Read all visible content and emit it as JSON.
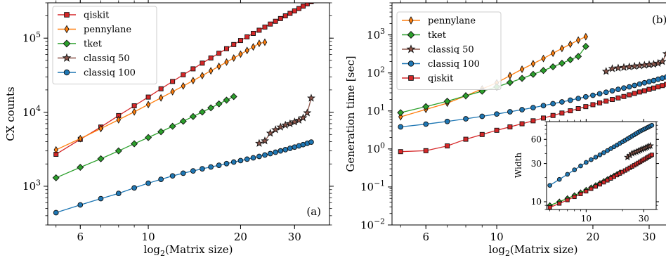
{
  "colors": {
    "qiskit": "#d62728",
    "pennylane": "#ff7f0e",
    "tket": "#2ca02c",
    "classiq": "#1f77b4",
    "classiq50": "#8c564b"
  },
  "chart_data": [
    {
      "type": "line",
      "panel": "(a)",
      "xscale": "log",
      "yscale": "log",
      "xlabel": "log$_2$(Matrix size)",
      "xlabel_text": "log",
      "xlabel_sub": "2",
      "xlabel_rest": "(Matrix size)",
      "ylabel": "CX counts",
      "xlim": [
        4.7,
        39
      ],
      "ylim": [
        300,
        300000
      ],
      "xticks": [
        {
          "v": 6,
          "label": "6"
        },
        {
          "v": 10,
          "label": "10"
        },
        {
          "v": 20,
          "label": "20"
        },
        {
          "v": 30,
          "label": "30"
        }
      ],
      "yticks": [
        {
          "v": 1000,
          "base": "10",
          "exp": "3"
        },
        {
          "v": 10000,
          "base": "10",
          "exp": "4"
        },
        {
          "v": 100000,
          "base": "10",
          "exp": "5"
        }
      ],
      "legend_position": "top-left",
      "series": [
        {
          "name": "qiskit",
          "color": "#d62728",
          "marker": "square",
          "x": [
            5,
            6,
            7,
            8,
            9,
            10,
            11,
            12,
            13,
            14,
            15,
            16,
            17,
            18,
            19,
            20,
            21,
            22,
            23,
            24,
            25,
            26,
            27,
            28,
            29,
            30,
            31,
            32,
            33,
            34,
            35
          ],
          "y": [
            2700,
            4300,
            6300,
            9000,
            12200,
            16000,
            20700,
            26000,
            32000,
            38500,
            46000,
            54000,
            62500,
            72000,
            82000,
            93000,
            104000,
            116000,
            128000,
            141000,
            155000,
            169000,
            184000,
            200000,
            216000,
            233000,
            251000,
            270000,
            290000,
            310000,
            320000
          ]
        },
        {
          "name": "pennylane",
          "color": "#ff7f0e",
          "marker": "thin_diamond",
          "x": [
            5,
            6,
            7,
            8,
            9,
            10,
            11,
            12,
            13,
            14,
            15,
            16,
            17,
            18,
            19,
            20,
            21,
            22,
            23,
            24
          ],
          "y": [
            3100,
            4400,
            6000,
            7900,
            10100,
            12700,
            15600,
            18900,
            22600,
            26700,
            31200,
            36200,
            41600,
            47500,
            53900,
            60800,
            68200,
            76100,
            85000,
            88000
          ]
        },
        {
          "name": "tket",
          "color": "#2ca02c",
          "marker": "diamond",
          "x": [
            5,
            6,
            7,
            8,
            9,
            10,
            11,
            12,
            13,
            14,
            15,
            16,
            17,
            18,
            19
          ],
          "y": [
            1300,
            1800,
            2350,
            3000,
            3750,
            4550,
            5450,
            6450,
            7550,
            8750,
            10050,
            11450,
            12950,
            14550,
            16250
          ]
        },
        {
          "name": "classiq 50",
          "color": "#8c564b",
          "marker": "star",
          "x": [
            23,
            24,
            25,
            26,
            27,
            28,
            29,
            30,
            31,
            32,
            33,
            34
          ],
          "y": [
            3800,
            4100,
            5200,
            5800,
            6300,
            6700,
            7000,
            7400,
            7800,
            8400,
            9800,
            15500
          ]
        },
        {
          "name": "classiq 100",
          "color": "#1f77b4",
          "marker": "circle",
          "x": [
            5,
            6,
            7,
            8,
            9,
            10,
            11,
            12,
            13,
            14,
            15,
            16,
            17,
            18,
            19,
            20,
            21,
            22,
            23,
            24,
            25,
            26,
            27,
            28,
            29,
            30,
            31,
            32,
            33,
            34
          ],
          "y": [
            440,
            560,
            680,
            800,
            950,
            1100,
            1240,
            1380,
            1500,
            1610,
            1720,
            1820,
            1920,
            2020,
            2120,
            2220,
            2320,
            2420,
            2530,
            2640,
            2760,
            2880,
            3000,
            3120,
            3250,
            3380,
            3510,
            3650,
            3800,
            3950
          ]
        }
      ]
    },
    {
      "type": "line",
      "panel": "(b)",
      "xscale": "log",
      "yscale": "log",
      "xlabel": "log$_2$(Matrix size)",
      "xlabel_text": "log",
      "xlabel_sub": "2",
      "xlabel_rest": "(Matrix size)",
      "ylabel": "Generation time [sec]",
      "xlim": [
        4.7,
        36
      ],
      "ylim": [
        0.01,
        7000
      ],
      "xticks": [
        {
          "v": 6,
          "label": "6"
        },
        {
          "v": 10,
          "label": "10"
        },
        {
          "v": 20,
          "label": "20"
        },
        {
          "v": 30,
          "label": "30"
        }
      ],
      "yticks": [
        {
          "v": 0.01,
          "base": "10",
          "exp": "−2"
        },
        {
          "v": 0.1,
          "base": "10",
          "exp": "−1"
        },
        {
          "v": 1,
          "base": "10",
          "exp": "0"
        },
        {
          "v": 10,
          "base": "10",
          "exp": "1"
        },
        {
          "v": 100,
          "base": "10",
          "exp": "2"
        },
        {
          "v": 1000,
          "base": "10",
          "exp": "3"
        }
      ],
      "legend_position": "top-left",
      "series": [
        {
          "name": "pennylane",
          "color": "#ff7f0e",
          "marker": "thin_diamond",
          "x": [
            5,
            6,
            7,
            8,
            9,
            10,
            11,
            12,
            13,
            14,
            15,
            16,
            17,
            18,
            19
          ],
          "y": [
            7,
            11,
            16,
            25,
            38,
            55,
            85,
            125,
            175,
            240,
            330,
            440,
            570,
            730,
            900
          ]
        },
        {
          "name": "tket",
          "color": "#2ca02c",
          "marker": "diamond",
          "x": [
            5,
            6,
            7,
            8,
            9,
            10,
            11,
            12,
            13,
            14,
            15,
            16,
            17,
            18,
            19
          ],
          "y": [
            9,
            13,
            18,
            25,
            33,
            43,
            56,
            72,
            92,
            116,
            145,
            180,
            222,
            272,
            500
          ]
        },
        {
          "name": "classiq 50",
          "color": "#8c564b",
          "marker": "star",
          "x": [
            22,
            23,
            24,
            25,
            26,
            27,
            28,
            29,
            30,
            31,
            32,
            33,
            34
          ],
          "y": [
            110,
            130,
            135,
            140,
            145,
            150,
            155,
            160,
            165,
            170,
            180,
            200,
            320
          ]
        },
        {
          "name": "classiq 100",
          "color": "#1f77b4",
          "marker": "circle",
          "x": [
            5,
            6,
            7,
            8,
            9,
            10,
            11,
            12,
            13,
            14,
            15,
            16,
            17,
            18,
            19,
            20,
            21,
            22,
            23,
            24,
            25,
            26,
            27,
            28,
            29,
            30,
            31,
            32,
            33,
            34,
            35
          ],
          "y": [
            3.8,
            4.5,
            5.3,
            6.2,
            7.2,
            8.3,
            9.5,
            10.8,
            12.2,
            13.8,
            15.5,
            17.3,
            19.2,
            21.3,
            23.5,
            25.8,
            28.3,
            31,
            34,
            37,
            40,
            43,
            47,
            51,
            55,
            59,
            63,
            68,
            73,
            78,
            82
          ]
        },
        {
          "name": "qiskit",
          "color": "#d62728",
          "marker": "square",
          "x": [
            5,
            6,
            7,
            8,
            9,
            10,
            11,
            12,
            13,
            14,
            15,
            16,
            17,
            18,
            19,
            20,
            21,
            22,
            23,
            24,
            25,
            26,
            27,
            28,
            29,
            30,
            31,
            32,
            33,
            34,
            35
          ],
          "y": [
            0.85,
            0.9,
            1.2,
            1.8,
            2.4,
            3.1,
            3.8,
            4.6,
            5.5,
            6.5,
            7.6,
            8.8,
            10.1,
            11.5,
            13,
            14.6,
            16.3,
            18.1,
            20,
            22,
            24,
            26.5,
            29,
            31.5,
            34,
            37,
            40,
            43,
            46.5,
            50,
            54
          ]
        }
      ]
    },
    {
      "type": "line",
      "panel": "inset",
      "xscale": "log",
      "yscale": "log",
      "ylabel": "Width",
      "xlim": [
        4.7,
        38
      ],
      "ylim": [
        8,
        100
      ],
      "xticks": [
        {
          "v": 10,
          "label": "10"
        },
        {
          "v": 30,
          "label": "30"
        }
      ],
      "yticks": [
        {
          "v": 10,
          "label": "10"
        },
        {
          "v": 30,
          "label": "30"
        },
        {
          "v": 60,
          "label": "60"
        }
      ],
      "series": [
        {
          "name": "classiq 100",
          "color": "#1f77b4",
          "marker": "circle",
          "x": [
            5,
            6,
            7,
            8,
            9,
            10,
            11,
            12,
            13,
            14,
            15,
            16,
            17,
            18,
            19,
            20,
            21,
            22,
            23,
            24,
            25,
            26,
            27,
            28,
            29,
            30,
            31,
            32,
            33,
            34,
            35
          ],
          "y": [
            16,
            19,
            22,
            25,
            28,
            31,
            33.5,
            36,
            38.5,
            41,
            43.5,
            46,
            48.5,
            51,
            53.5,
            56,
            58.5,
            61,
            63.5,
            66,
            68.5,
            71,
            73.5,
            76,
            78,
            80,
            82,
            84,
            86,
            88,
            90
          ]
        },
        {
          "name": "classiq 50",
          "color": "#8c564b",
          "marker": "star",
          "x": [
            22,
            23,
            24,
            25,
            26,
            27,
            28,
            29,
            30,
            31,
            32,
            33,
            34
          ],
          "y": [
            36,
            38,
            40,
            41,
            42,
            43,
            44,
            45,
            46,
            47,
            48,
            49,
            50
          ]
        },
        {
          "name": "pennylane",
          "color": "#ff7f0e",
          "marker": "thin_diamond",
          "x": [
            5,
            6,
            7,
            8,
            9,
            10,
            11,
            12,
            13,
            14,
            15,
            16,
            17,
            18,
            19
          ],
          "y": [
            9,
            10,
            11,
            12,
            13,
            14,
            15,
            16,
            17,
            18,
            19,
            20,
            21,
            22,
            23
          ]
        },
        {
          "name": "tket",
          "color": "#2ca02c",
          "marker": "diamond",
          "x": [
            5,
            6,
            7,
            8,
            9,
            10,
            11,
            12,
            13,
            14,
            15,
            16,
            17,
            18,
            19
          ],
          "y": [
            9,
            10,
            11,
            12,
            13,
            14,
            15,
            16,
            17,
            18,
            19,
            20,
            21,
            22,
            23
          ]
        },
        {
          "name": "qiskit",
          "color": "#d62728",
          "marker": "square",
          "x": [
            5,
            6,
            7,
            8,
            9,
            10,
            11,
            12,
            13,
            14,
            15,
            16,
            17,
            18,
            19,
            20,
            21,
            22,
            23,
            24,
            25,
            26,
            27,
            28,
            29,
            30,
            31,
            32,
            33,
            34,
            35
          ],
          "y": [
            8.5,
            9.5,
            10.5,
            11.5,
            12.5,
            13.5,
            14.5,
            15.5,
            16.5,
            17.5,
            18.5,
            19.5,
            20.5,
            21.5,
            22.5,
            23.5,
            24.5,
            25.5,
            26.5,
            27.5,
            28.5,
            29.5,
            30.5,
            31.5,
            32.5,
            33.5,
            34.5,
            35.5,
            36.5,
            37.5,
            38.5
          ]
        }
      ]
    }
  ]
}
